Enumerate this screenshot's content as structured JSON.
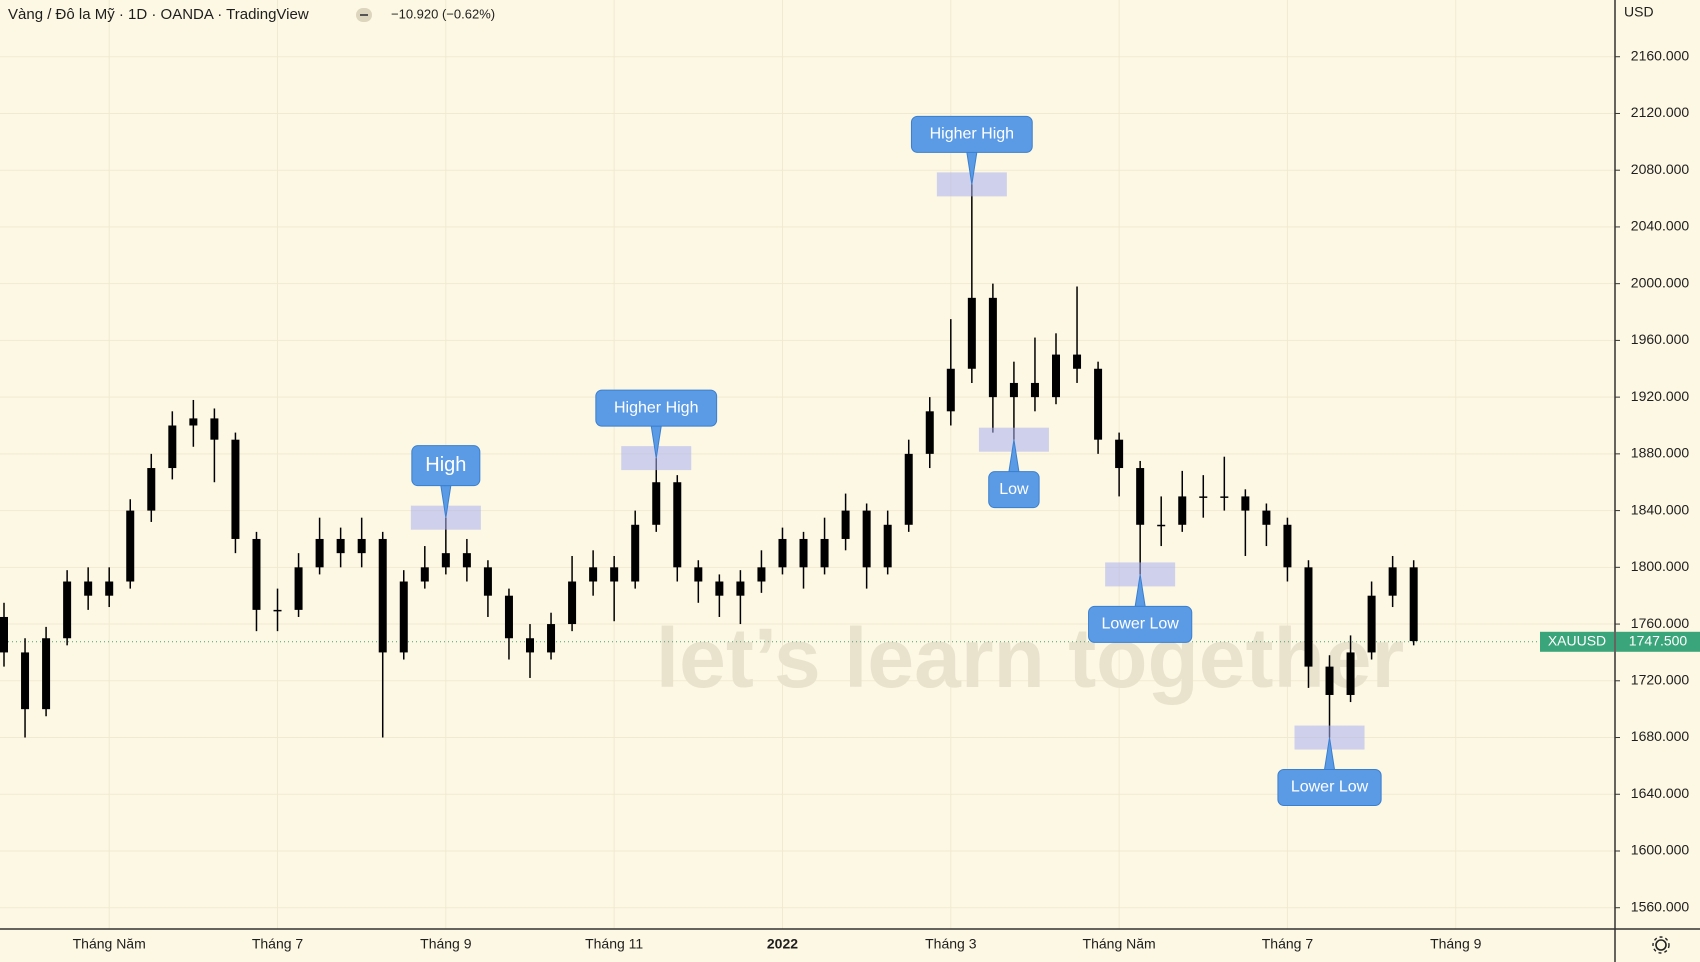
{
  "chart_data": {
    "type": "candlestick",
    "title": "Vàng / Đô la Mỹ · 1D · OANDA · TradingView",
    "change": "−10.920 (−0.62%)",
    "currency": "USD",
    "symbol": "XAUUSD",
    "watermark": "let’s learn together",
    "last_price": {
      "value": 1747.5,
      "label": "1747.500"
    },
    "color": "#000000",
    "grid": true,
    "categories": [
      null,
      null,
      null,
      null,
      null,
      "Tháng Năm",
      null,
      null,
      null,
      null,
      null,
      null,
      null,
      "Tháng 7",
      null,
      null,
      null,
      null,
      null,
      null,
      null,
      "Tháng 9",
      null,
      null,
      null,
      null,
      null,
      null,
      null,
      "Tháng 11",
      null,
      null,
      null,
      null,
      null,
      null,
      null,
      "2022",
      null,
      null,
      null,
      null,
      null,
      null,
      null,
      "Tháng 3",
      null,
      null,
      null,
      null,
      null,
      null,
      null,
      "Tháng Năm",
      null,
      null,
      null,
      null,
      null,
      null,
      null,
      "Tháng 7",
      null,
      null,
      null,
      null,
      null,
      null,
      null,
      "Tháng 9"
    ],
    "open": [
      1765,
      1740,
      1700,
      1750,
      1790,
      1780,
      1790,
      1840,
      1870,
      1900,
      1905,
      1890,
      1820,
      1770,
      1770,
      1800,
      1820,
      1810,
      1820,
      1740,
      1790,
      1800,
      1810,
      1800,
      1780,
      1750,
      1740,
      1760,
      1790,
      1800,
      1790,
      1830,
      1860,
      1800,
      1790,
      1780,
      1790,
      1800,
      1820,
      1800,
      1820,
      1840,
      1800,
      1830,
      1880,
      1910,
      1940,
      1990,
      1920,
      1930,
      1920,
      1950,
      1940,
      1890,
      1870,
      1830,
      1830,
      1850,
      1850,
      1850,
      1840,
      1830,
      1800,
      1730,
      1710,
      1740,
      1780,
      1800,
      null,
      null
    ],
    "high": [
      1775,
      1750,
      1758,
      1798,
      1800,
      1800,
      1848,
      1880,
      1910,
      1918,
      1912,
      1895,
      1825,
      1785,
      1810,
      1835,
      1828,
      1835,
      1825,
      1798,
      1815,
      1835,
      1820,
      1805,
      1785,
      1760,
      1768,
      1808,
      1812,
      1808,
      1840,
      1877,
      1865,
      1805,
      1795,
      1798,
      1812,
      1828,
      1825,
      1835,
      1852,
      1845,
      1840,
      1890,
      1920,
      1975,
      2070,
      2000,
      1945,
      1962,
      1965,
      1998,
      1945,
      1895,
      1875,
      1850,
      1868,
      1865,
      1878,
      1855,
      1845,
      1835,
      1805,
      1738,
      1752,
      1790,
      1808,
      1805,
      null,
      null
    ],
    "low": [
      1730,
      1680,
      1695,
      1745,
      1770,
      1772,
      1785,
      1832,
      1862,
      1885,
      1860,
      1810,
      1755,
      1755,
      1765,
      1795,
      1800,
      1800,
      1680,
      1735,
      1785,
      1795,
      1790,
      1765,
      1735,
      1722,
      1735,
      1755,
      1780,
      1762,
      1785,
      1825,
      1790,
      1775,
      1765,
      1760,
      1782,
      1795,
      1785,
      1795,
      1812,
      1785,
      1795,
      1825,
      1870,
      1900,
      1930,
      1895,
      1890,
      1910,
      1915,
      1930,
      1880,
      1850,
      1795,
      1815,
      1825,
      1835,
      1840,
      1808,
      1815,
      1790,
      1715,
      1680,
      1705,
      1735,
      1772,
      1745,
      null,
      null
    ],
    "close": [
      1740,
      1700,
      1750,
      1790,
      1780,
      1790,
      1840,
      1870,
      1900,
      1905,
      1890,
      1820,
      1770,
      1770,
      1800,
      1820,
      1810,
      1820,
      1740,
      1790,
      1800,
      1810,
      1800,
      1780,
      1750,
      1740,
      1760,
      1790,
      1800,
      1790,
      1830,
      1860,
      1800,
      1790,
      1780,
      1790,
      1800,
      1820,
      1800,
      1820,
      1840,
      1800,
      1830,
      1880,
      1910,
      1940,
      1990,
      1920,
      1930,
      1920,
      1950,
      1940,
      1890,
      1870,
      1830,
      1830,
      1850,
      1850,
      1850,
      1840,
      1830,
      1800,
      1730,
      1710,
      1740,
      1780,
      1800,
      1748,
      null,
      null
    ],
    "ylim": [
      1545,
      2200
    ],
    "yticks": [
      {
        "value": 1560,
        "label": "1560.000"
      },
      {
        "value": 1600,
        "label": "1600.000"
      },
      {
        "value": 1640,
        "label": "1640.000"
      },
      {
        "value": 1680,
        "label": "1680.000"
      },
      {
        "value": 1720,
        "label": "1720.000"
      },
      {
        "value": 1760,
        "label": "1760.000"
      },
      {
        "value": 1800,
        "label": "1800.000"
      },
      {
        "value": 1840,
        "label": "1840.000"
      },
      {
        "value": 1880,
        "label": "1880.000"
      },
      {
        "value": 1920,
        "label": "1920.000"
      },
      {
        "value": 1960,
        "label": "1960.000"
      },
      {
        "value": 2000,
        "label": "2000.000"
      },
      {
        "value": 2040,
        "label": "2040.000"
      },
      {
        "value": 2080,
        "label": "2080.000"
      },
      {
        "value": 2120,
        "label": "2120.000"
      },
      {
        "value": 2160,
        "label": "2160.000"
      }
    ],
    "annotations": [
      {
        "text": "High"
      },
      {
        "text": "Higher High"
      },
      {
        "text": "Higher High"
      },
      {
        "text": "Low"
      },
      {
        "text": "Lower Low"
      },
      {
        "text": "Lower Low"
      }
    ]
  }
}
